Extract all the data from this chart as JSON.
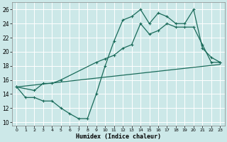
{
  "xlabel": "Humidex (Indice chaleur)",
  "bg_color": "#cce8e8",
  "grid_color": "#ffffff",
  "line_color": "#1a6b5a",
  "xlim": [
    -0.5,
    23.5
  ],
  "ylim": [
    9.5,
    27
  ],
  "yticks": [
    10,
    12,
    14,
    16,
    18,
    20,
    22,
    24,
    26
  ],
  "xticks": [
    0,
    1,
    2,
    3,
    4,
    5,
    6,
    7,
    8,
    9,
    10,
    11,
    12,
    13,
    14,
    15,
    16,
    17,
    18,
    19,
    20,
    21,
    22,
    23
  ],
  "line1_x": [
    0,
    1,
    2,
    3,
    4,
    5,
    6,
    7,
    8,
    9,
    10,
    11,
    12,
    13,
    14,
    15,
    16,
    17,
    18,
    19,
    20,
    21,
    22,
    23
  ],
  "line1_y": [
    15,
    13.5,
    13.5,
    13,
    13,
    12,
    11.2,
    10.5,
    10.5,
    14,
    18,
    21.5,
    24.5,
    25,
    26,
    24,
    25.5,
    25,
    24,
    24,
    26,
    20.5,
    19.2,
    18.5
  ],
  "line2_x": [
    0,
    2,
    3,
    4,
    5,
    9,
    10,
    11,
    12,
    13,
    14,
    15,
    16,
    17,
    18,
    19,
    20,
    21,
    22,
    23
  ],
  "line2_y": [
    15,
    14.5,
    15.5,
    15.5,
    16,
    18.5,
    19,
    19.5,
    20.5,
    21,
    24,
    22.5,
    23,
    24,
    23.5,
    23.5,
    23.5,
    21,
    18.5,
    18.5
  ],
  "line3_x": [
    0,
    23
  ],
  "line3_y": [
    15,
    18.2
  ]
}
